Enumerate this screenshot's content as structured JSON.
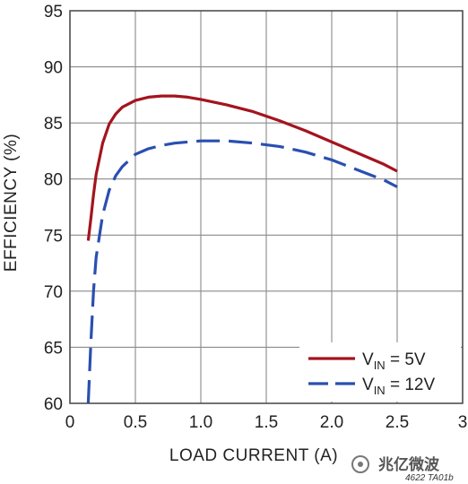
{
  "chart_data": {
    "type": "line",
    "xlabel": "LOAD CURRENT (A)",
    "ylabel": "EFFICIENCY (%)",
    "xlim": [
      0,
      3
    ],
    "ylim": [
      60,
      95
    ],
    "x_ticks": [
      "0",
      "0.5",
      "1.0",
      "1.5",
      "2.0",
      "2.5",
      "3"
    ],
    "y_ticks": [
      "60",
      "65",
      "70",
      "75",
      "80",
      "85",
      "90",
      "95"
    ],
    "grid": true,
    "legend_position": "bottom-right",
    "series": [
      {
        "name_main": "V",
        "name_sub": "IN",
        "name_rest": " = 5V",
        "color": "#a3141e",
        "dash": "solid",
        "x": [
          0.14,
          0.16,
          0.18,
          0.2,
          0.25,
          0.3,
          0.35,
          0.4,
          0.5,
          0.6,
          0.7,
          0.8,
          0.9,
          1.0,
          1.2,
          1.4,
          1.6,
          1.8,
          2.0,
          2.2,
          2.4,
          2.5
        ],
        "y": [
          74.5,
          76.5,
          78.6,
          80.4,
          83.2,
          84.9,
          85.8,
          86.4,
          87.0,
          87.3,
          87.4,
          87.4,
          87.3,
          87.1,
          86.6,
          86.0,
          85.2,
          84.3,
          83.3,
          82.3,
          81.3,
          80.7
        ]
      },
      {
        "name_main": "V",
        "name_sub": "IN",
        "name_rest": " = 12V",
        "color": "#2a4fb0",
        "dash": "long-dash",
        "x": [
          0.14,
          0.16,
          0.18,
          0.2,
          0.25,
          0.3,
          0.35,
          0.4,
          0.5,
          0.6,
          0.7,
          0.8,
          0.9,
          1.0,
          1.2,
          1.4,
          1.6,
          1.8,
          2.0,
          2.2,
          2.4,
          2.5
        ],
        "y": [
          60.0,
          65.5,
          70.0,
          73.0,
          76.8,
          79.0,
          80.3,
          81.1,
          82.2,
          82.7,
          83.0,
          83.2,
          83.3,
          83.4,
          83.4,
          83.2,
          82.9,
          82.4,
          81.7,
          80.8,
          79.9,
          79.3
        ]
      }
    ]
  },
  "footer": {
    "figure_code": "4622 TA01b",
    "watermark": "兆亿微波"
  }
}
